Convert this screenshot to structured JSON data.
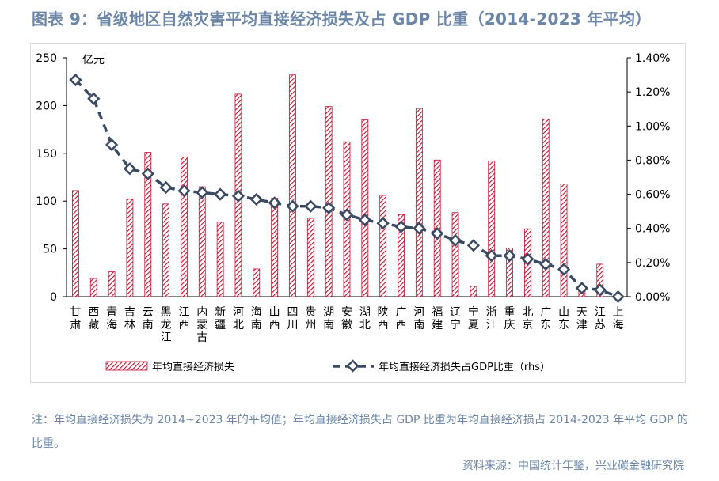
{
  "title": "图表 9：省级地区自然灾害平均直接经济损失及占 GDP 比重（2014-2023 年平均）",
  "note": "注：年均直接经济损失为 2014~2023 年的平均值；年均直接经济损失占 GDP 比重为年均直接经济损占 2014-2023 年平均 GDP 的比重。",
  "source": "资料来源：中国统计年鉴，兴业碳金融研究院",
  "chart_data": {
    "type": "bar",
    "unit_label": "亿元",
    "categories": [
      "甘肃",
      "西藏",
      "青海",
      "吉林",
      "云南",
      "黑龙江",
      "江西",
      "内蒙古",
      "新疆",
      "河北",
      "海南",
      "山西",
      "四川",
      "贵州",
      "湖南",
      "安徽",
      "湖北",
      "陕西",
      "广西",
      "河南",
      "福建",
      "辽宁",
      "宁夏",
      "浙江",
      "重庆",
      "北京",
      "广东",
      "山东",
      "天津",
      "江苏",
      "上海"
    ],
    "series": [
      {
        "name": "年均直接经济损失",
        "type": "bar",
        "axis": "left",
        "color": "#c8102e",
        "values": [
          111,
          19,
          26,
          102,
          151,
          97,
          146,
          115,
          78,
          212,
          29,
          103,
          232,
          82,
          199,
          162,
          185,
          106,
          86,
          197,
          143,
          88,
          11,
          142,
          51,
          71,
          186,
          118,
          6,
          34,
          1
        ]
      },
      {
        "name": "年均直接经济损失占GDP比重（rhs）",
        "type": "line",
        "axis": "right",
        "color": "#3a4a63",
        "values": [
          1.27,
          1.16,
          0.89,
          0.75,
          0.72,
          0.64,
          0.62,
          0.61,
          0.6,
          0.59,
          0.57,
          0.55,
          0.53,
          0.53,
          0.52,
          0.48,
          0.45,
          0.43,
          0.41,
          0.4,
          0.37,
          0.33,
          0.3,
          0.24,
          0.24,
          0.22,
          0.19,
          0.16,
          0.05,
          0.04,
          0.0
        ]
      }
    ],
    "y_left": {
      "min": 0,
      "max": 250,
      "ticks": [
        "0",
        "50",
        "100",
        "150",
        "200",
        "250"
      ]
    },
    "y_right": {
      "min": 0,
      "max": 1.4,
      "ticks": [
        "0.00%",
        "0.20%",
        "0.40%",
        "0.60%",
        "0.80%",
        "1.00%",
        "1.20%",
        "1.40%"
      ]
    },
    "grid": false,
    "legend_position": "bottom"
  }
}
